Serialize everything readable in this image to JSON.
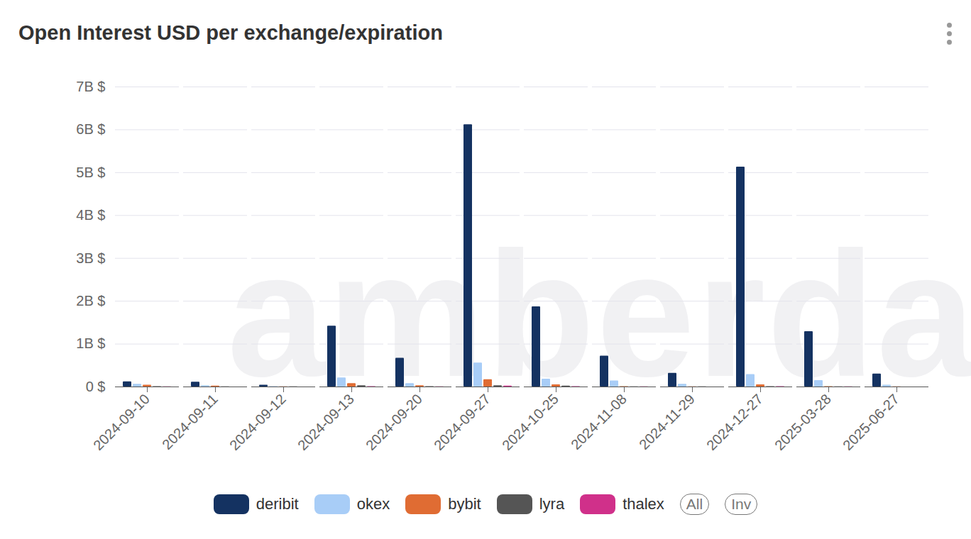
{
  "chart_data": {
    "type": "bar",
    "title": "Open Interest USD per exchange/expiration",
    "watermark": "amberdata",
    "annotations": [
      "All",
      "Inv"
    ],
    "categories": [
      "2024-09-10",
      "2024-09-11",
      "2024-09-12",
      "2024-09-13",
      "2024-09-20",
      "2024-09-27",
      "2024-10-25",
      "2024-11-08",
      "2024-11-29",
      "2024-12-27",
      "2025-03-28",
      "2025-06-27"
    ],
    "series": [
      {
        "name": "deribit",
        "color": "#143261",
        "values": [
          0.12,
          0.11,
          0.04,
          1.42,
          0.67,
          6.12,
          1.87,
          0.72,
          0.32,
          5.13,
          1.29,
          0.3
        ]
      },
      {
        "name": "okex",
        "color": "#a8cdf7",
        "values": [
          0.06,
          0.03,
          0.01,
          0.21,
          0.08,
          0.56,
          0.18,
          0.14,
          0.06,
          0.29,
          0.15,
          0.04
        ]
      },
      {
        "name": "bybit",
        "color": "#e06c33",
        "values": [
          0.04,
          0.02,
          0.005,
          0.08,
          0.03,
          0.17,
          0.05,
          0.01,
          0.005,
          0.05,
          0.01,
          0.005
        ]
      },
      {
        "name": "lyra",
        "color": "#555555",
        "values": [
          0.01,
          0.005,
          0.003,
          0.03,
          0.01,
          0.03,
          0.02,
          0.005,
          0.003,
          0.01,
          0.005,
          0.002
        ]
      },
      {
        "name": "thalex",
        "color": "#d0308a",
        "values": [
          0.003,
          0.002,
          0.001,
          0.01,
          0.005,
          0.02,
          0.01,
          0.003,
          0.002,
          0.01,
          0.005,
          0.002
        ]
      }
    ],
    "ylim": [
      0,
      7
    ],
    "yticks": [
      {
        "value": 0,
        "label": "0 $"
      },
      {
        "value": 1,
        "label": "1B $"
      },
      {
        "value": 2,
        "label": "2B $"
      },
      {
        "value": 3,
        "label": "3B $"
      },
      {
        "value": 4,
        "label": "4B $"
      },
      {
        "value": 5,
        "label": "5B $"
      },
      {
        "value": 6,
        "label": "6B $"
      },
      {
        "value": 7,
        "label": "7B $"
      }
    ],
    "grid": true,
    "legend": "bottom"
  }
}
